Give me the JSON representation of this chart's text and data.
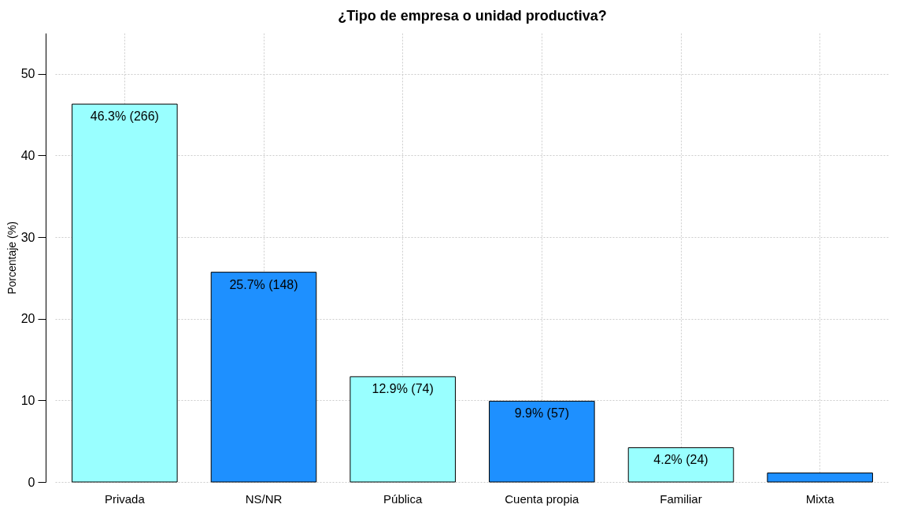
{
  "chart_data": {
    "type": "bar",
    "title": "¿Tipo de empresa o unidad productiva?",
    "ylabel": "Porcentaje (%)",
    "categories": [
      "Privada",
      "NS/NR",
      "Pública",
      "Cuenta propia",
      "Familiar",
      "Mixta"
    ],
    "values": [
      46.3,
      25.7,
      12.9,
      9.9,
      4.2,
      1.1
    ],
    "colors": [
      "#99ffff",
      "#1e90ff",
      "#99ffff",
      "#1e90ff",
      "#99ffff",
      "#1e90ff"
    ],
    "value_labels": [
      "46.3% (266)",
      "25.7% (148)",
      "12.9% (74)",
      "9.9% (57)",
      "4.2% (24)",
      null
    ],
    "ylim": [
      0,
      55
    ],
    "yticks": [
      0,
      10,
      20,
      30,
      40,
      50
    ],
    "grid": true
  }
}
